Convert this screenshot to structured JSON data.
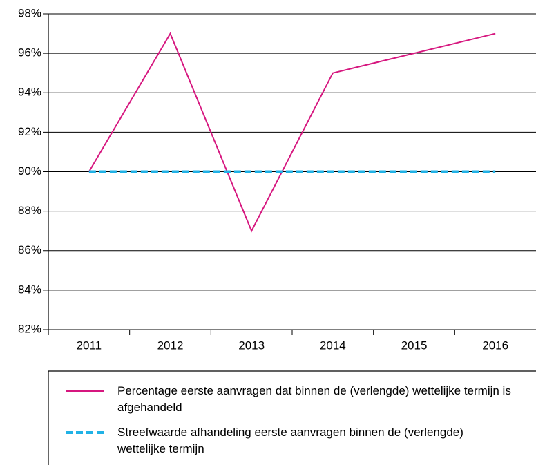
{
  "chart_data": {
    "type": "line",
    "categories": [
      "2011",
      "2012",
      "2013",
      "2014",
      "2015",
      "2016"
    ],
    "series": [
      {
        "name": "Percentage eerste aanvragen dat binnen de (verlengde) wettelijke termijn is afgehandeld",
        "color": "#d6177f",
        "dash": false,
        "values": [
          90,
          97,
          87,
          95,
          96,
          97
        ]
      },
      {
        "name": "Streefwaarde afhandeling eerste aanvragen binnen de (verlengde) wettelijke termijn",
        "color": "#21b2e6",
        "dash": true,
        "values": [
          90,
          90,
          90,
          90,
          90,
          90
        ]
      }
    ],
    "ylim": [
      82,
      98
    ],
    "yticks": [
      {
        "value": 82,
        "label": "82%"
      },
      {
        "value": 84,
        "label": "84%"
      },
      {
        "value": 86,
        "label": "86%"
      },
      {
        "value": 88,
        "label": "88%"
      },
      {
        "value": 90,
        "label": "90%"
      },
      {
        "value": 92,
        "label": "92%"
      },
      {
        "value": 94,
        "label": "94%"
      },
      {
        "value": 96,
        "label": "96%"
      },
      {
        "value": 98,
        "label": "98%"
      }
    ],
    "grid": true
  }
}
